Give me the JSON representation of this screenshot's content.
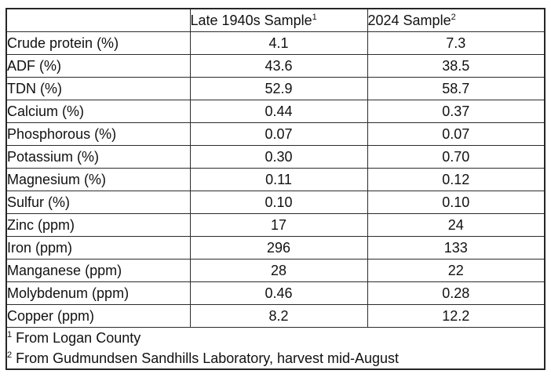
{
  "chart_data": {
    "type": "table",
    "title": "",
    "columns": [
      "",
      "Late 1940s Sample",
      "2024 Sample"
    ],
    "column_superscripts": [
      "",
      "1",
      "2"
    ],
    "rows": [
      {
        "label": "Crude protein (%)",
        "values": [
          "4.1",
          "7.3"
        ]
      },
      {
        "label": "ADF (%)",
        "values": [
          "43.6",
          "38.5"
        ]
      },
      {
        "label": "TDN (%)",
        "values": [
          "52.9",
          "58.7"
        ]
      },
      {
        "label": "Calcium (%)",
        "values": [
          "0.44",
          "0.37"
        ]
      },
      {
        "label": "Phosphorous (%)",
        "values": [
          "0.07",
          "0.07"
        ]
      },
      {
        "label": "Potassium (%)",
        "values": [
          "0.30",
          "0.70"
        ]
      },
      {
        "label": "Magnesium (%)",
        "values": [
          "0.11",
          "0.12"
        ]
      },
      {
        "label": "Sulfur (%)",
        "values": [
          "0.10",
          "0.10"
        ]
      },
      {
        "label": "Zinc (ppm)",
        "values": [
          "17",
          "24"
        ]
      },
      {
        "label": "Iron (ppm)",
        "values": [
          "296",
          "133"
        ]
      },
      {
        "label": "Manganese (ppm)",
        "values": [
          "28",
          "22"
        ]
      },
      {
        "label": "Molybdenum (ppm)",
        "values": [
          "0.46",
          "0.28"
        ]
      },
      {
        "label": "Copper (ppm)",
        "values": [
          "8.2",
          "12.2"
        ]
      }
    ],
    "footnotes": [
      {
        "marker": "1",
        "text": "From Logan County"
      },
      {
        "marker": "2",
        "text": "From Gudmundsen Sandhills Laboratory, harvest mid-August"
      }
    ],
    "layout": {
      "grid": "full-borders",
      "value_alignment": "center",
      "label_alignment": "left"
    }
  },
  "colors": {
    "background": "#ffffff",
    "border": "#2b2b2b",
    "text": "#111111"
  }
}
